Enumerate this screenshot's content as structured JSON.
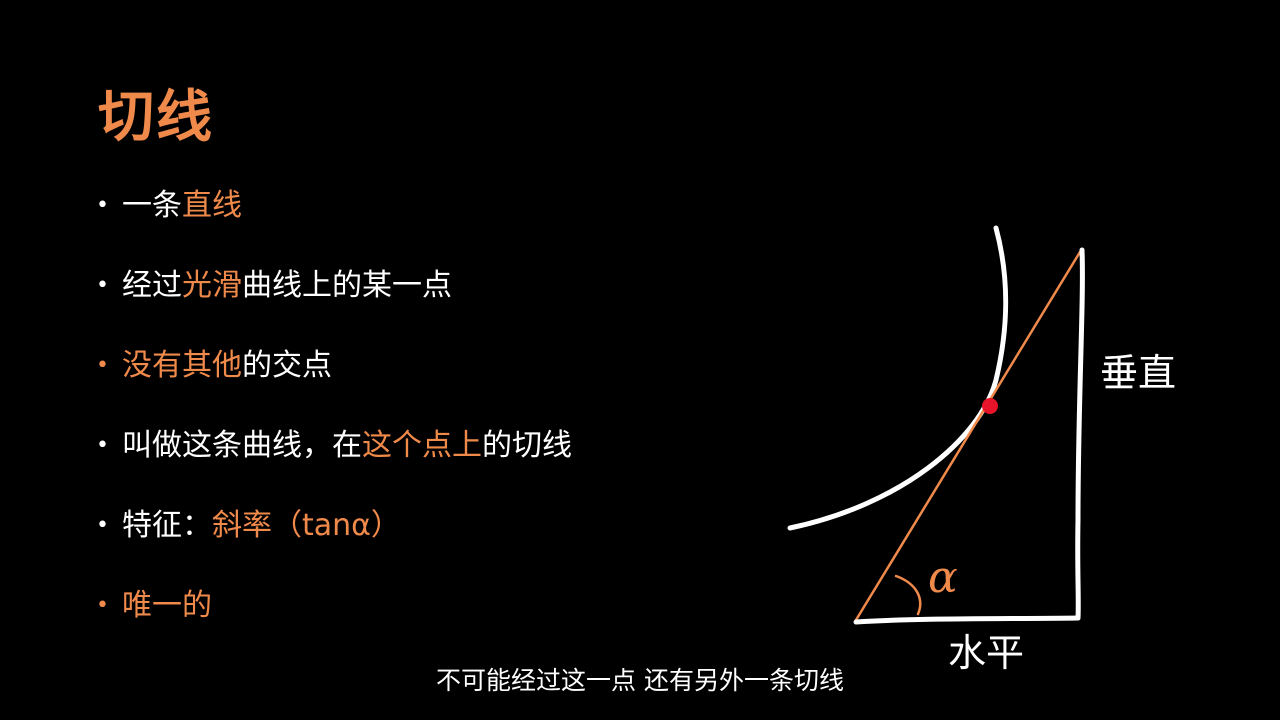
{
  "title": "切线",
  "bullets": [
    {
      "segments": [
        {
          "text": "一条",
          "hl": false
        },
        {
          "text": "直线",
          "hl": true
        }
      ],
      "dot_hl": false
    },
    {
      "segments": [
        {
          "text": "经过",
          "hl": false
        },
        {
          "text": "光滑",
          "hl": true
        },
        {
          "text": "曲线上的某一点",
          "hl": false
        }
      ],
      "dot_hl": false
    },
    {
      "segments": [
        {
          "text": "没有其他",
          "hl": true
        },
        {
          "text": "的交点",
          "hl": false
        }
      ],
      "dot_hl": true
    },
    {
      "segments": [
        {
          "text": "叫做这条曲线，在",
          "hl": false
        },
        {
          "text": "这个点上",
          "hl": true
        },
        {
          "text": "的切线",
          "hl": false
        }
      ],
      "dot_hl": false
    },
    {
      "segments": [
        {
          "text": "特征：",
          "hl": false
        },
        {
          "text": "斜率（tanα）",
          "hl": true
        }
      ],
      "dot_hl": false
    },
    {
      "segments": [
        {
          "text": "唯一的",
          "hl": true
        }
      ],
      "dot_hl": true
    }
  ],
  "diagram": {
    "vertical_label": "垂直",
    "horizontal_label": "水平",
    "angle_label": "α"
  },
  "subtitle": "不可能经过这一点 还有另外一条切线",
  "colors": {
    "accent": "#f08a4b",
    "text": "#ffffff",
    "background": "#000000",
    "point": "#e8142a"
  }
}
